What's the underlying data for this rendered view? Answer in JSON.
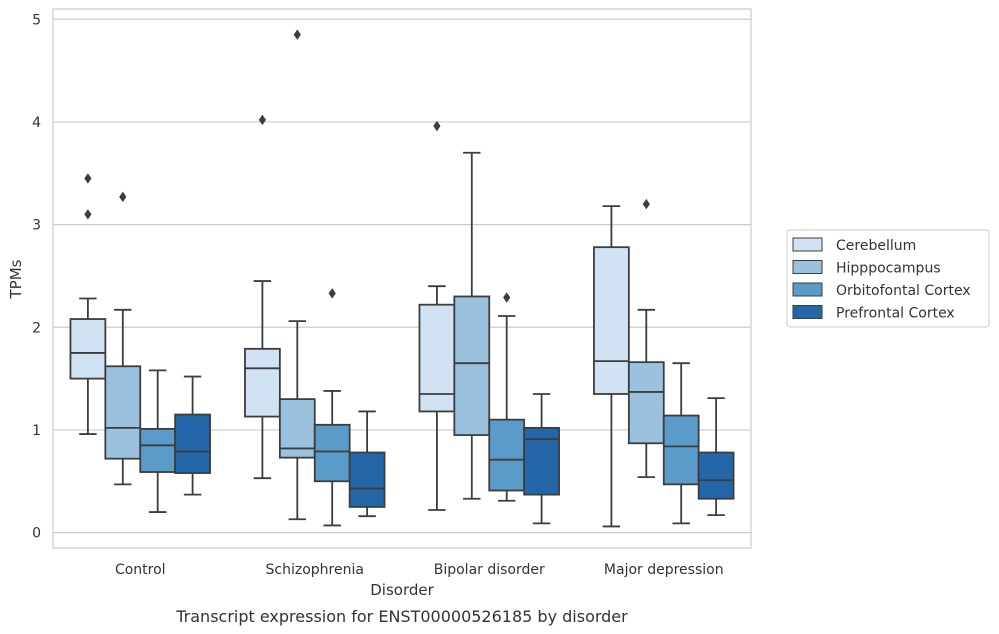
{
  "chart_data": {
    "type": "box",
    "title": "",
    "caption": "Transcript expression for ENST00000526185 by disorder",
    "xlabel": "Disorder",
    "ylabel": "TPMs",
    "ylim": [
      -0.15,
      5.1
    ],
    "yticks": [
      0,
      1,
      2,
      3,
      4,
      5
    ],
    "grid": "horizontal",
    "legend_position": "right",
    "categories": [
      "Control",
      "Schizophrenia",
      "Bipolar disorder",
      "Major depression"
    ],
    "series": [
      {
        "name": "Cerebellum",
        "color": "#d1e2f2",
        "boxes": [
          {
            "whislo": 0.96,
            "q1": 1.5,
            "med": 1.75,
            "q3": 2.08,
            "whishi": 2.28,
            "fliers": [
              3.1,
              3.45
            ]
          },
          {
            "whislo": 0.53,
            "q1": 1.13,
            "med": 1.6,
            "q3": 1.79,
            "whishi": 2.45,
            "fliers": [
              4.02
            ]
          },
          {
            "whislo": 0.22,
            "q1": 1.18,
            "med": 1.35,
            "q3": 2.22,
            "whishi": 2.4,
            "fliers": [
              3.96
            ]
          },
          {
            "whislo": 0.06,
            "q1": 1.35,
            "med": 1.67,
            "q3": 2.78,
            "whishi": 3.18,
            "fliers": []
          }
        ]
      },
      {
        "name": "Hipppocampus",
        "color": "#9ac2de",
        "boxes": [
          {
            "whislo": 0.47,
            "q1": 0.72,
            "med": 1.02,
            "q3": 1.62,
            "whishi": 2.17,
            "fliers": [
              3.27
            ]
          },
          {
            "whislo": 0.13,
            "q1": 0.73,
            "med": 0.82,
            "q3": 1.3,
            "whishi": 2.06,
            "fliers": [
              4.85
            ]
          },
          {
            "whislo": 0.33,
            "q1": 0.95,
            "med": 1.65,
            "q3": 2.3,
            "whishi": 3.7,
            "fliers": []
          },
          {
            "whislo": 0.54,
            "q1": 0.87,
            "med": 1.37,
            "q3": 1.66,
            "whishi": 2.17,
            "fliers": [
              3.2
            ]
          }
        ]
      },
      {
        "name": "Orbitofontal Cortex",
        "color": "#5a9bc9",
        "boxes": [
          {
            "whislo": 0.2,
            "q1": 0.59,
            "med": 0.85,
            "q3": 1.01,
            "whishi": 1.58,
            "fliers": []
          },
          {
            "whislo": 0.07,
            "q1": 0.5,
            "med": 0.79,
            "q3": 1.05,
            "whishi": 1.38,
            "fliers": [
              2.33
            ]
          },
          {
            "whislo": 0.31,
            "q1": 0.41,
            "med": 0.71,
            "q3": 1.1,
            "whishi": 2.11,
            "fliers": [
              2.29
            ]
          },
          {
            "whislo": 0.09,
            "q1": 0.47,
            "med": 0.84,
            "q3": 1.14,
            "whishi": 1.65,
            "fliers": []
          }
        ]
      },
      {
        "name": "Prefrontal Cortex",
        "color": "#2467a8",
        "boxes": [
          {
            "whislo": 0.37,
            "q1": 0.58,
            "med": 0.79,
            "q3": 1.15,
            "whishi": 1.52,
            "fliers": []
          },
          {
            "whislo": 0.16,
            "q1": 0.25,
            "med": 0.43,
            "q3": 0.78,
            "whishi": 1.18,
            "fliers": []
          },
          {
            "whislo": 0.09,
            "q1": 0.37,
            "med": 0.91,
            "q3": 1.02,
            "whishi": 1.35,
            "fliers": []
          },
          {
            "whislo": 0.17,
            "q1": 0.33,
            "med": 0.51,
            "q3": 0.78,
            "whishi": 1.31,
            "fliers": []
          }
        ]
      }
    ]
  }
}
